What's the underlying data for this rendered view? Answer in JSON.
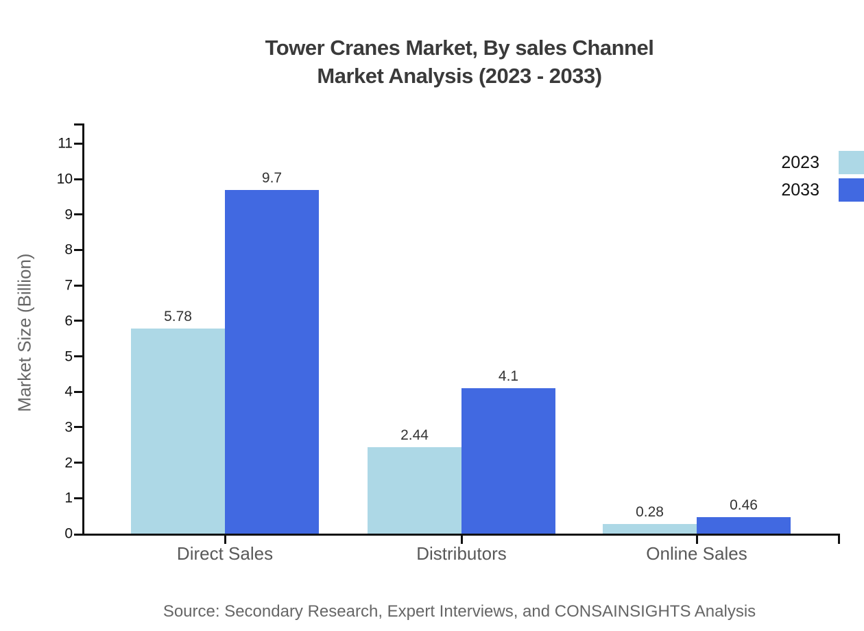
{
  "title": {
    "line1": "Tower Cranes Market, By sales Channel",
    "line2": "Market Analysis (2023 - 2033)"
  },
  "source": "Source: Secondary Research, Expert Interviews, and CONSAINSIGHTS Analysis",
  "chart_data": {
    "type": "bar",
    "title": "Tower Cranes Market, By sales Channel Market Analysis (2023 - 2033)",
    "categories": [
      "Direct Sales",
      "Distributors",
      "Online Sales"
    ],
    "series": [
      {
        "name": "2023",
        "color": "#ADD8E6",
        "values": [
          5.78,
          2.44,
          0.28
        ]
      },
      {
        "name": "2033",
        "color": "#4169E1",
        "values": [
          9.7,
          4.1,
          0.46
        ]
      }
    ],
    "xlabel": "",
    "ylabel": "Market Size (Billion)",
    "ylim": [
      0,
      11
    ],
    "yticks": [
      0,
      1,
      2,
      3,
      4,
      5,
      6,
      7,
      8,
      9,
      10,
      11
    ],
    "grid": false,
    "legend_position": "top-right",
    "value_labels": true,
    "axis_color": "#111111",
    "text_colors": {
      "title": "#3a3a3a",
      "axis_labels": "#595959",
      "value_labels": "#333333",
      "source": "#666666"
    }
  }
}
